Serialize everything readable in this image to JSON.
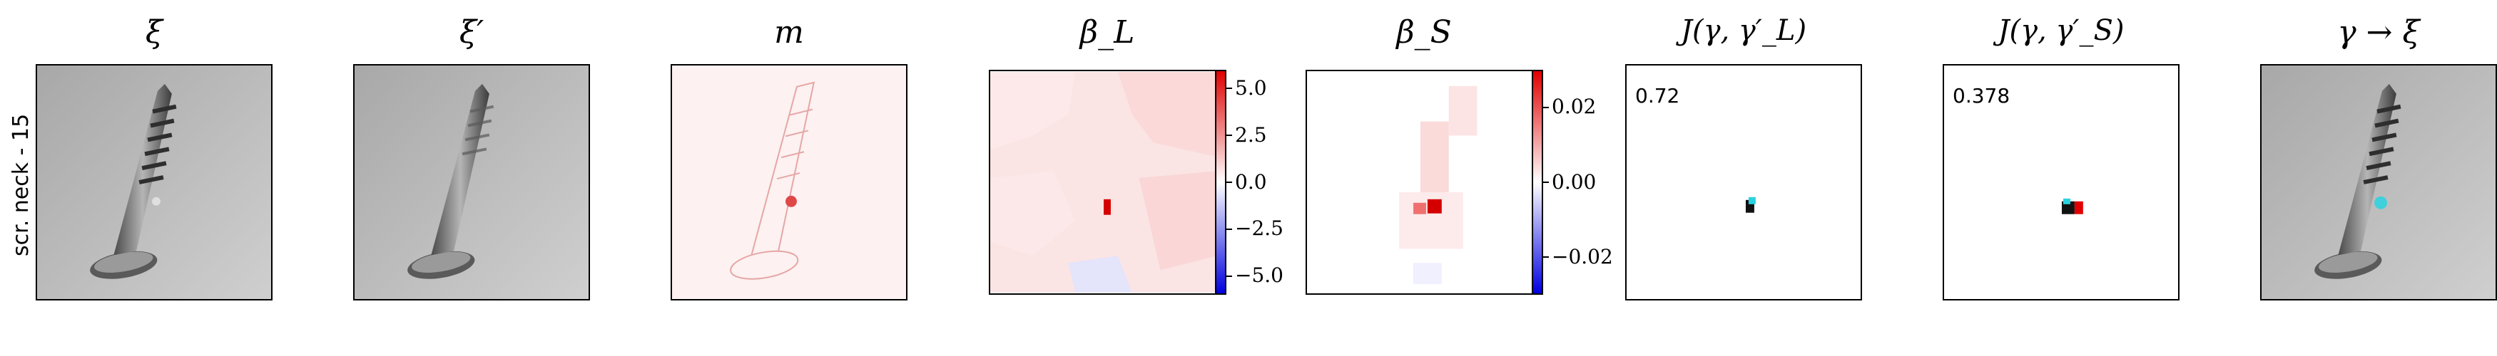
{
  "row_label": "scr. neck - 15",
  "titles": [
    "ξ",
    "ξ′",
    "m",
    "β_L",
    "β_S",
    "J(γ, γ′_L)",
    "J(γ, γ′_S)",
    "γ → ξ"
  ],
  "scores": {
    "jl": "0.72",
    "js": "0.378"
  },
  "colorbar_L": {
    "ticks": [
      "5.0",
      "2.5",
      "0.0",
      "−2.5",
      "−5.0"
    ],
    "values": [
      5.0,
      2.5,
      0.0,
      -2.5,
      -5.0
    ],
    "range": [
      -6,
      6
    ]
  },
  "colorbar_S": {
    "ticks": [
      "0.02",
      "0.00",
      "−0.02"
    ],
    "values": [
      0.02,
      0.0,
      -0.02
    ],
    "range": [
      -0.03,
      0.03
    ]
  },
  "colors": {
    "positive": "#e00000",
    "negative": "#0000e0",
    "mask_cyan": "#29d3e0"
  }
}
